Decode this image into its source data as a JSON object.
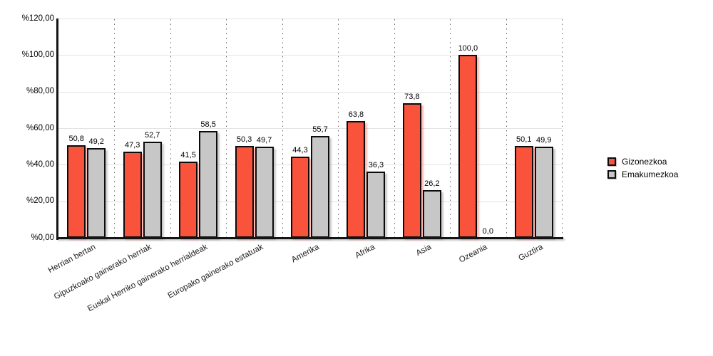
{
  "chart_data": {
    "type": "bar",
    "title": "",
    "xlabel": "",
    "ylabel": "",
    "ylim": [
      0,
      120
    ],
    "legend_position": "right",
    "grid": {
      "horizontal": true,
      "vertical": "dotted"
    },
    "categories": [
      "Herrian bertan",
      "Gipuzkoako gainerako herriak",
      "Euskal Herriko gainerako herrialdeak",
      "Europako gainerako estatuak",
      "Amerika",
      "Afrika",
      "Asia",
      "Ozeania",
      "Guztira"
    ],
    "series": [
      {
        "name": "Gizonezkoa",
        "color": "#f9533b",
        "shadow_color": "rgba(249,83,59,0.4)",
        "values": [
          50.8,
          47.3,
          41.5,
          50.3,
          44.3,
          63.8,
          73.8,
          100.0,
          50.1
        ],
        "labels": [
          "50,8",
          "47,3",
          "41,5",
          "50,3",
          "44,3",
          "63,8",
          "73,8",
          "100,0",
          "50,1"
        ]
      },
      {
        "name": "Emakumezkoa",
        "color": "#c7c7c7",
        "shadow_color": "rgba(130,130,130,0.4)",
        "values": [
          49.2,
          52.7,
          58.5,
          49.7,
          55.7,
          36.3,
          26.2,
          0.0,
          49.9
        ],
        "labels": [
          "49,2",
          "52,7",
          "58,5",
          "49,7",
          "55,7",
          "36,3",
          "26,2",
          "0,0",
          "49,9"
        ]
      }
    ],
    "y_ticks": [
      {
        "value": 0,
        "label": "%0,00"
      },
      {
        "value": 20,
        "label": "%20,00"
      },
      {
        "value": 40,
        "label": "%40,00"
      },
      {
        "value": 60,
        "label": "%60,00"
      },
      {
        "value": 80,
        "label": "%80,00"
      },
      {
        "value": 100,
        "label": "%100,00"
      },
      {
        "value": 120,
        "label": "%120,00"
      }
    ],
    "axis_color": "#141414",
    "gridline_color": "#e3e3e3",
    "dotted_line_color": "#666666",
    "bar_border_color": "#0b0b0b"
  }
}
